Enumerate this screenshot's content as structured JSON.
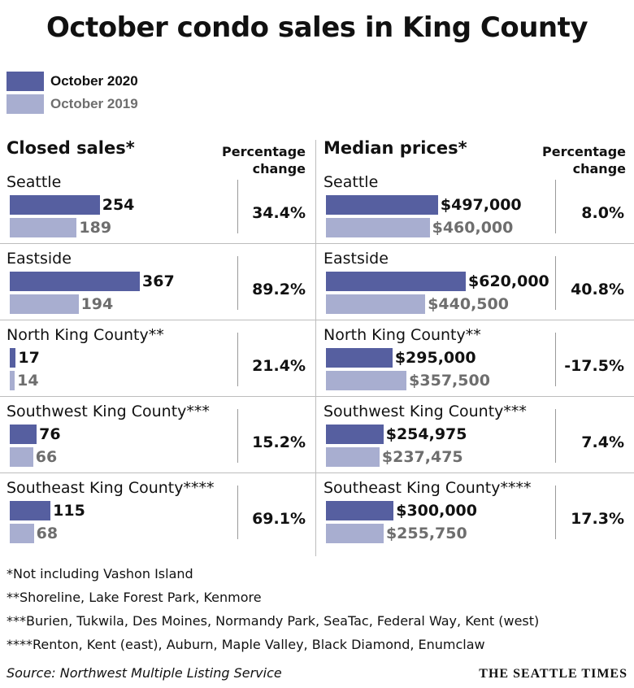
{
  "title": "October condo sales in King County",
  "legend": [
    {
      "label": "October 2020",
      "color": "#565fa0"
    },
    {
      "label": "October 2019",
      "color": "#a8aed0"
    }
  ],
  "chart_data": [
    {
      "type": "bar",
      "title": "Closed sales*",
      "pct_header": [
        "Percentage",
        "change"
      ],
      "categories": [
        "Seattle",
        "Eastside",
        "North King County**",
        "Southwest King County***",
        "Southeast King County****"
      ],
      "series": [
        {
          "name": "October 2020",
          "values": [
            254,
            367,
            17,
            76,
            115
          ],
          "labels": [
            "254",
            "367",
            "17",
            "76",
            "115"
          ]
        },
        {
          "name": "October 2019",
          "values": [
            189,
            194,
            14,
            66,
            68
          ],
          "labels": [
            "189",
            "194",
            "14",
            "66",
            "68"
          ]
        }
      ],
      "percentage_change": [
        "34.4%",
        "89.2%",
        "21.4%",
        "15.2%",
        "69.1%"
      ]
    },
    {
      "type": "bar",
      "title": "Median prices*",
      "pct_header": [
        "Percentage",
        "change"
      ],
      "categories": [
        "Seattle",
        "Eastside",
        "North King County**",
        "Southwest King County***",
        "Southeast King County****"
      ],
      "series": [
        {
          "name": "October 2020",
          "values": [
            497000,
            620000,
            295000,
            254975,
            300000
          ],
          "labels": [
            "$497,000",
            "$620,000",
            "$295,000",
            "$254,975",
            "$300,000"
          ]
        },
        {
          "name": "October 2019",
          "values": [
            460000,
            440500,
            357500,
            237475,
            255750
          ],
          "labels": [
            "$460,000",
            "$440,500",
            "$357,500",
            "$237,475",
            "$255,750"
          ]
        }
      ],
      "percentage_change": [
        "8.0%",
        "40.8%",
        "-17.5%",
        "7.4%",
        "17.3%"
      ]
    }
  ],
  "footnotes": [
    "*Not including Vashon Island",
    "**Shoreline, Lake Forest Park, Kenmore",
    "***Burien, Tukwila, Des Moines, Normandy Park, SeaTac, Federal Way, Kent (west)",
    "****Renton, Kent (east), Auburn, Maple Valley, Black Diamond, Enumclaw"
  ],
  "source": "Source: Northwest Multiple Listing Service",
  "brand": "THE SEATTLE TIMES"
}
